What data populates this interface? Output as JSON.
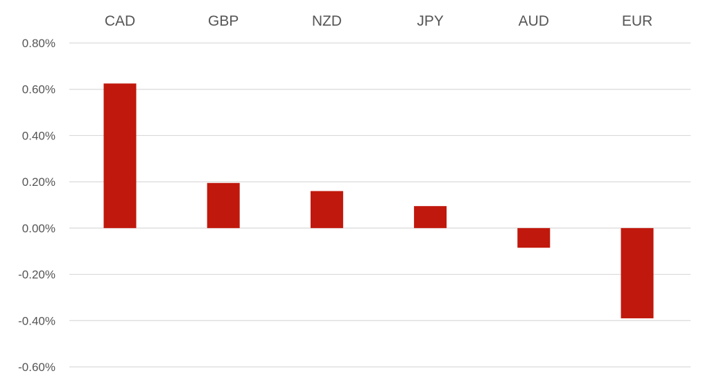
{
  "chart_data": {
    "type": "bar",
    "title": "",
    "xlabel": "",
    "ylabel": "",
    "categories": [
      "CAD",
      "GBP",
      "NZD",
      "JPY",
      "AUD",
      "EUR"
    ],
    "values": [
      0.625,
      0.195,
      0.16,
      0.095,
      -0.085,
      -0.39
    ],
    "value_unit": "%",
    "ylim": [
      -0.6,
      0.8
    ],
    "yticks": [
      0.8,
      0.6,
      0.4,
      0.2,
      0.0,
      -0.2,
      -0.4,
      -0.6
    ],
    "ytick_labels": [
      "0.80%",
      "0.60%",
      "0.40%",
      "0.20%",
      "0.00%",
      "-0.20%",
      "-0.40%",
      "-0.60%"
    ],
    "category_labels_position": "top",
    "grid": true,
    "legend": "none",
    "colors": {
      "bar": "#c0180c",
      "grid": "#d9d9d9",
      "text": "#555555"
    }
  }
}
